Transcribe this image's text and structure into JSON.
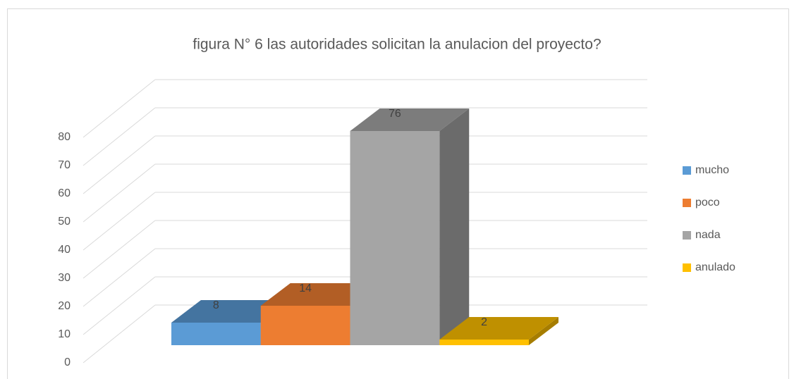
{
  "chart_data": {
    "type": "bar3d",
    "title": "figura N° 6 las autoridades solicitan la anulacion del proyecto?",
    "series": [
      {
        "name": "mucho",
        "color": "#5b9bd5",
        "values": [
          8
        ]
      },
      {
        "name": "poco",
        "color": "#ed7d31",
        "values": [
          14
        ]
      },
      {
        "name": "nada",
        "color": "#a5a5a5",
        "values": [
          76
        ]
      },
      {
        "name": "anulado",
        "color": "#ffc000",
        "values": [
          2
        ]
      }
    ],
    "ylim": [
      0,
      80
    ],
    "yticks": [
      0,
      10,
      20,
      30,
      40,
      50,
      60,
      70,
      80
    ],
    "grid": true,
    "legend": "right"
  }
}
